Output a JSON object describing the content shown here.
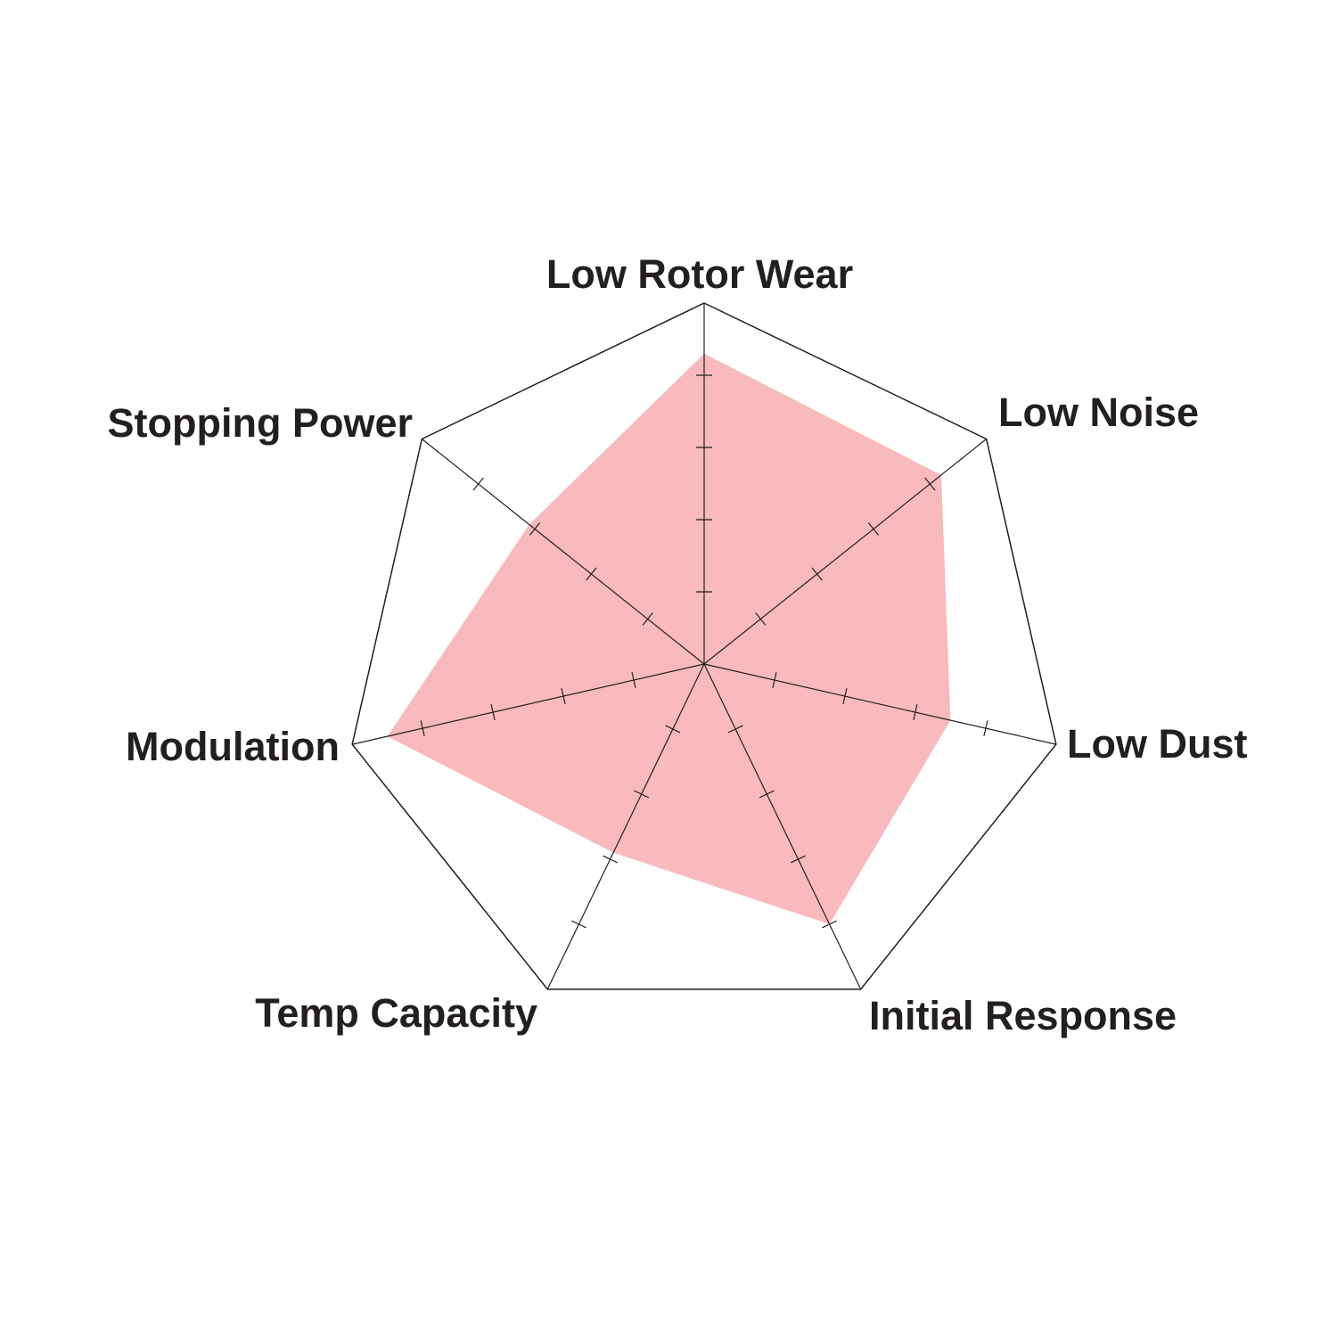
{
  "chart_data": {
    "type": "radar",
    "categories": [
      "Low Rotor Wear",
      "Low Noise",
      "Low Dust",
      "Initial Response",
      "Temp Capacity",
      "Modulation",
      "Stopping Power"
    ],
    "values": [
      4.3,
      4.2,
      3.5,
      4.0,
      2.9,
      4.5,
      3.1
    ],
    "rlim": [
      0,
      5
    ],
    "ticks": [
      1,
      2,
      3,
      4
    ],
    "grid": false,
    "colors": {
      "fill": "#f8babd",
      "lines": "#231f20",
      "text": "#231f20"
    }
  }
}
